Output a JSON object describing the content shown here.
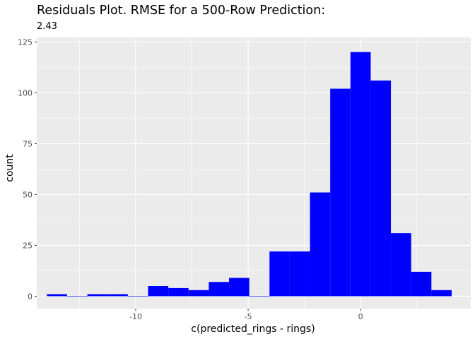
{
  "chart_data": {
    "type": "bar",
    "title": "Residuals Plot. RMSE for a 500-Row Prediction:",
    "subtitle": "2.43",
    "xlabel": "c(predicted_rings - rings)",
    "ylabel": "count",
    "xlim": [
      -14.4,
      4.9
    ],
    "ylim": [
      -6.1,
      127.2
    ],
    "x_ticks": [
      -10,
      -5,
      0
    ],
    "x_tick_labels": [
      "-10",
      "-5",
      "0"
    ],
    "y_ticks": [
      0,
      25,
      50,
      75,
      100,
      125
    ],
    "y_tick_labels": [
      "0",
      "25",
      "50",
      "75",
      "100",
      "125"
    ],
    "bin_width": 0.9,
    "bins": [
      {
        "x": -13.5,
        "count": 1
      },
      {
        "x": -12.6,
        "count": 0
      },
      {
        "x": -11.7,
        "count": 1
      },
      {
        "x": -10.8,
        "count": 1
      },
      {
        "x": -9.9,
        "count": 0
      },
      {
        "x": -9.0,
        "count": 5
      },
      {
        "x": -8.1,
        "count": 4
      },
      {
        "x": -7.2,
        "count": 3
      },
      {
        "x": -6.3,
        "count": 7
      },
      {
        "x": -5.4,
        "count": 9
      },
      {
        "x": -4.5,
        "count": 0
      },
      {
        "x": -3.6,
        "count": 22
      },
      {
        "x": -2.7,
        "count": 22
      },
      {
        "x": -1.8,
        "count": 51
      },
      {
        "x": -0.9,
        "count": 102
      },
      {
        "x": 0.0,
        "count": 120
      },
      {
        "x": 0.9,
        "count": 106
      },
      {
        "x": 1.8,
        "count": 31
      },
      {
        "x": 2.7,
        "count": 12
      },
      {
        "x": 3.6,
        "count": 3
      }
    ],
    "fill_color": "#0000ff",
    "panel_background": "#ebebeb",
    "grid_color": "#ffffff",
    "grid": true,
    "legend": "none"
  }
}
